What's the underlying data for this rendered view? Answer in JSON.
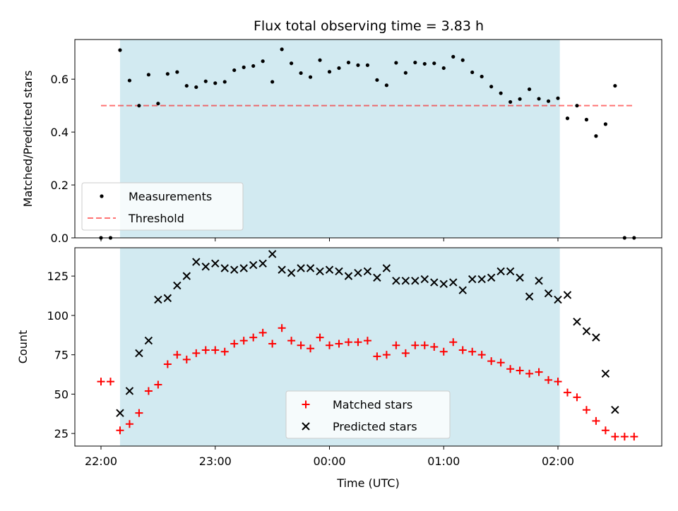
{
  "title": "Flux total observing time = 3.83 h",
  "colors": {
    "shade": "#add8e6",
    "measurement": "#000000",
    "threshold": "#ff0000",
    "matched": "#ff0000",
    "predicted": "#000000"
  },
  "chart_data": [
    {
      "type": "scatter",
      "ylabel": "Matched/Predicted stars",
      "ylim": [
        0,
        0.75
      ],
      "yticks": [
        "0.0",
        "0.2",
        "0.4",
        "0.6"
      ],
      "xlim": [
        "21:45",
        "03:00"
      ],
      "shaded_span": [
        "22:10",
        "02:01"
      ],
      "legend": {
        "placement": "lower-left",
        "entries": [
          "Measurements",
          "Threshold"
        ]
      },
      "threshold": {
        "name": "Threshold",
        "value": 0.5,
        "x_range": [
          "22:00",
          "02:40"
        ]
      },
      "series": [
        {
          "name": "Measurements",
          "points": [
            [
              "22:00",
              0.0
            ],
            [
              "22:05",
              0.0
            ],
            [
              "22:10",
              0.71
            ],
            [
              "22:15",
              0.595
            ],
            [
              "22:20",
              0.5
            ],
            [
              "22:25",
              0.617
            ],
            [
              "22:30",
              0.508
            ],
            [
              "22:35",
              0.62
            ],
            [
              "22:40",
              0.627
            ],
            [
              "22:45",
              0.575
            ],
            [
              "22:50",
              0.57
            ],
            [
              "22:55",
              0.592
            ],
            [
              "23:00",
              0.585
            ],
            [
              "23:05",
              0.59
            ],
            [
              "23:10",
              0.634
            ],
            [
              "23:15",
              0.645
            ],
            [
              "23:20",
              0.65
            ],
            [
              "23:25",
              0.668
            ],
            [
              "23:30",
              0.59
            ],
            [
              "23:35",
              0.713
            ],
            [
              "23:40",
              0.66
            ],
            [
              "23:45",
              0.623
            ],
            [
              "23:50",
              0.608
            ],
            [
              "23:55",
              0.672
            ],
            [
              "00:00",
              0.628
            ],
            [
              "00:05",
              0.642
            ],
            [
              "00:10",
              0.663
            ],
            [
              "00:15",
              0.653
            ],
            [
              "00:20",
              0.653
            ],
            [
              "00:25",
              0.597
            ],
            [
              "00:30",
              0.577
            ],
            [
              "00:35",
              0.662
            ],
            [
              "00:40",
              0.624
            ],
            [
              "00:45",
              0.663
            ],
            [
              "00:50",
              0.658
            ],
            [
              "00:55",
              0.66
            ],
            [
              "01:00",
              0.642
            ],
            [
              "01:05",
              0.685
            ],
            [
              "01:10",
              0.672
            ],
            [
              "01:15",
              0.626
            ],
            [
              "01:20",
              0.61
            ],
            [
              "01:25",
              0.572
            ],
            [
              "01:30",
              0.547
            ],
            [
              "01:35",
              0.514
            ],
            [
              "01:40",
              0.525
            ],
            [
              "01:45",
              0.562
            ],
            [
              "01:50",
              0.526
            ],
            [
              "01:55",
              0.517
            ],
            [
              "02:00",
              0.528
            ],
            [
              "02:05",
              0.452
            ],
            [
              "02:10",
              0.5
            ],
            [
              "02:15",
              0.447
            ],
            [
              "02:20",
              0.385
            ],
            [
              "02:25",
              0.43
            ],
            [
              "02:30",
              0.575
            ],
            [
              "02:35",
              0.0
            ],
            [
              "02:40",
              0.0
            ]
          ]
        }
      ]
    },
    {
      "type": "scatter",
      "ylabel": "Count",
      "xlabel": "Time (UTC)",
      "ylim": [
        17,
        143
      ],
      "yticks": [
        "25",
        "50",
        "75",
        "100",
        "125"
      ],
      "xticks": [
        "22:00",
        "23:00",
        "00:00",
        "01:00",
        "02:00"
      ],
      "xlim": [
        "21:45",
        "03:00"
      ],
      "shaded_span": [
        "22:10",
        "02:01"
      ],
      "legend": {
        "placement": "lower-center",
        "entries": [
          "Matched stars",
          "Predicted stars"
        ]
      },
      "series": [
        {
          "name": "Matched stars",
          "marker": "plus",
          "points": [
            [
              "22:00",
              58
            ],
            [
              "22:05",
              58
            ],
            [
              "22:10",
              27
            ],
            [
              "22:15",
              31
            ],
            [
              "22:20",
              38
            ],
            [
              "22:25",
              52
            ],
            [
              "22:30",
              56
            ],
            [
              "22:35",
              69
            ],
            [
              "22:40",
              75
            ],
            [
              "22:45",
              72
            ],
            [
              "22:50",
              76
            ],
            [
              "22:55",
              78
            ],
            [
              "23:00",
              78
            ],
            [
              "23:05",
              77
            ],
            [
              "23:10",
              82
            ],
            [
              "23:15",
              84
            ],
            [
              "23:20",
              86
            ],
            [
              "23:25",
              89
            ],
            [
              "23:30",
              82
            ],
            [
              "23:35",
              92
            ],
            [
              "23:40",
              84
            ],
            [
              "23:45",
              81
            ],
            [
              "23:50",
              79
            ],
            [
              "23:55",
              86
            ],
            [
              "00:00",
              81
            ],
            [
              "00:05",
              82
            ],
            [
              "00:10",
              83
            ],
            [
              "00:15",
              83
            ],
            [
              "00:20",
              84
            ],
            [
              "00:25",
              74
            ],
            [
              "00:30",
              75
            ],
            [
              "00:35",
              81
            ],
            [
              "00:40",
              76
            ],
            [
              "00:45",
              81
            ],
            [
              "00:50",
              81
            ],
            [
              "00:55",
              80
            ],
            [
              "01:00",
              77
            ],
            [
              "01:05",
              83
            ],
            [
              "01:10",
              78
            ],
            [
              "01:15",
              77
            ],
            [
              "01:20",
              75
            ],
            [
              "01:25",
              71
            ],
            [
              "01:30",
              70
            ],
            [
              "01:35",
              66
            ],
            [
              "01:40",
              65
            ],
            [
              "01:45",
              63
            ],
            [
              "01:50",
              64
            ],
            [
              "01:55",
              59
            ],
            [
              "02:00",
              58
            ],
            [
              "02:05",
              51
            ],
            [
              "02:10",
              48
            ],
            [
              "02:15",
              40
            ],
            [
              "02:20",
              33
            ],
            [
              "02:25",
              27
            ],
            [
              "02:30",
              23
            ],
            [
              "02:35",
              23
            ],
            [
              "02:40",
              23
            ]
          ]
        },
        {
          "name": "Predicted stars",
          "marker": "x",
          "points": [
            [
              "22:10",
              38
            ],
            [
              "22:15",
              52
            ],
            [
              "22:20",
              76
            ],
            [
              "22:25",
              84
            ],
            [
              "22:30",
              110
            ],
            [
              "22:35",
              111
            ],
            [
              "22:40",
              119
            ],
            [
              "22:45",
              125
            ],
            [
              "22:50",
              134
            ],
            [
              "22:55",
              131
            ],
            [
              "23:00",
              133
            ],
            [
              "23:05",
              130
            ],
            [
              "23:10",
              129
            ],
            [
              "23:15",
              130
            ],
            [
              "23:20",
              132
            ],
            [
              "23:25",
              133
            ],
            [
              "23:30",
              139
            ],
            [
              "23:35",
              129
            ],
            [
              "23:40",
              127
            ],
            [
              "23:45",
              130
            ],
            [
              "23:50",
              130
            ],
            [
              "23:55",
              128
            ],
            [
              "00:00",
              129
            ],
            [
              "00:05",
              128
            ],
            [
              "00:10",
              125
            ],
            [
              "00:15",
              127
            ],
            [
              "00:20",
              128
            ],
            [
              "00:25",
              124
            ],
            [
              "00:30",
              130
            ],
            [
              "00:35",
              122
            ],
            [
              "00:40",
              122
            ],
            [
              "00:45",
              122
            ],
            [
              "00:50",
              123
            ],
            [
              "00:55",
              121
            ],
            [
              "01:00",
              120
            ],
            [
              "01:05",
              121
            ],
            [
              "01:10",
              116
            ],
            [
              "01:15",
              123
            ],
            [
              "01:20",
              123
            ],
            [
              "01:25",
              124
            ],
            [
              "01:30",
              128
            ],
            [
              "01:35",
              128
            ],
            [
              "01:40",
              124
            ],
            [
              "01:45",
              112
            ],
            [
              "01:50",
              122
            ],
            [
              "01:55",
              114
            ],
            [
              "02:00",
              110
            ],
            [
              "02:05",
              113
            ],
            [
              "02:10",
              96
            ],
            [
              "02:15",
              90
            ],
            [
              "02:20",
              86
            ],
            [
              "02:25",
              63
            ],
            [
              "02:30",
              40
            ]
          ]
        }
      ]
    }
  ]
}
